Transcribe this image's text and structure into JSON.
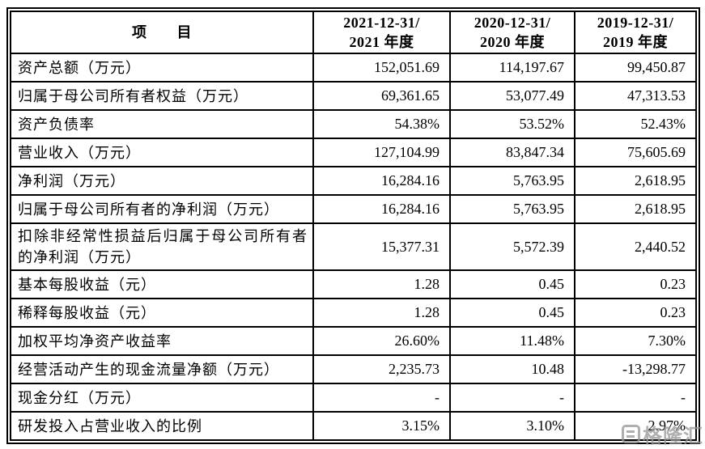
{
  "table": {
    "header": {
      "item_label": "项　　目",
      "periods": [
        {
          "line1": "2021-12-31/",
          "line2": "2021 年度"
        },
        {
          "line1": "2020-12-31/",
          "line2": "2020 年度"
        },
        {
          "line1": "2019-12-31/",
          "line2": "2019 年度"
        }
      ]
    },
    "rows": [
      {
        "label": "资产总额（万元）",
        "values": [
          "152,051.69",
          "114,197.67",
          "99,450.87"
        ]
      },
      {
        "label": "归属于母公司所有者权益（万元）",
        "values": [
          "69,361.65",
          "53,077.49",
          "47,313.53"
        ]
      },
      {
        "label": "资产负债率",
        "values": [
          "54.38%",
          "53.52%",
          "52.43%"
        ]
      },
      {
        "label": "营业收入（万元）",
        "values": [
          "127,104.99",
          "83,847.34",
          "75,605.69"
        ]
      },
      {
        "label": "净利润（万元）",
        "values": [
          "16,284.16",
          "5,763.95",
          "2,618.95"
        ]
      },
      {
        "label": "归属于母公司所有者的净利润（万元）",
        "values": [
          "16,284.16",
          "5,763.95",
          "2,618.95"
        ]
      },
      {
        "label": "扣除非经常性损益后归属于母公司所有者的净利润（万元）",
        "values": [
          "15,377.31",
          "5,572.39",
          "2,440.52"
        ]
      },
      {
        "label": "基本每股收益（元）",
        "values": [
          "1.28",
          "0.45",
          "0.23"
        ]
      },
      {
        "label": "稀释每股收益（元）",
        "values": [
          "1.28",
          "0.45",
          "0.23"
        ]
      },
      {
        "label": "加权平均净资产收益率",
        "values": [
          "26.60%",
          "11.48%",
          "7.30%"
        ]
      },
      {
        "label": "经营活动产生的现金流量净额（万元）",
        "values": [
          "2,235.73",
          "10.48",
          "-13,298.77"
        ]
      },
      {
        "label": "现金分红（万元）",
        "values": [
          "-",
          "-",
          "-"
        ]
      },
      {
        "label": "研发投入占营业收入的比例",
        "values": [
          "3.15%",
          "3.10%",
          "2.97%"
        ]
      }
    ]
  },
  "watermark": {
    "text": "格隆汇"
  }
}
